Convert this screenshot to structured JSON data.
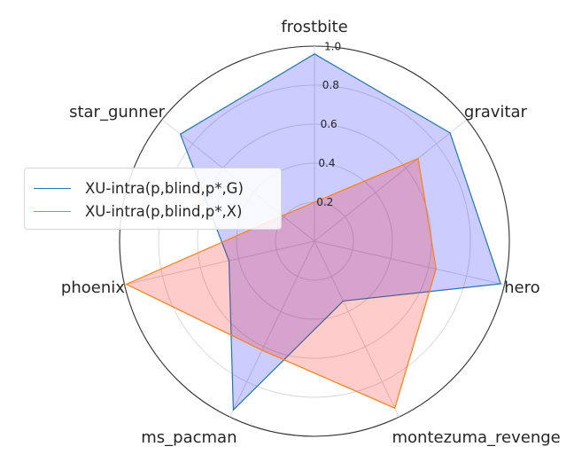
{
  "chart_data": {
    "type": "radar",
    "axes": [
      "frostbite",
      "gravitar",
      "hero",
      "montezuma_revenge",
      "ms_pacman",
      "phoenix",
      "star_gunner"
    ],
    "rlim": [
      0,
      1.0
    ],
    "rticks": [
      "0.2",
      "0.4",
      "0.6",
      "0.8",
      "1.0"
    ],
    "rtick_values": [
      0.2,
      0.4,
      0.6,
      0.8,
      1.0
    ],
    "grid": true,
    "legend_position": "center-left",
    "series": [
      {
        "name": "XU-intra(p,blind,p*,G)",
        "values": [
          0.96,
          0.89,
          0.98,
          0.34,
          0.96,
          0.45,
          0.88
        ],
        "line_color": "#1f77b4",
        "fill_color": "#0000ff"
      },
      {
        "name": "XU-intra(p,blind,p*,X)",
        "values": [
          0.2,
          0.68,
          0.64,
          0.95,
          0.62,
          0.99,
          0.21
        ],
        "line_color": "#ff7f0e",
        "fill_color": "#ff0000"
      }
    ]
  }
}
